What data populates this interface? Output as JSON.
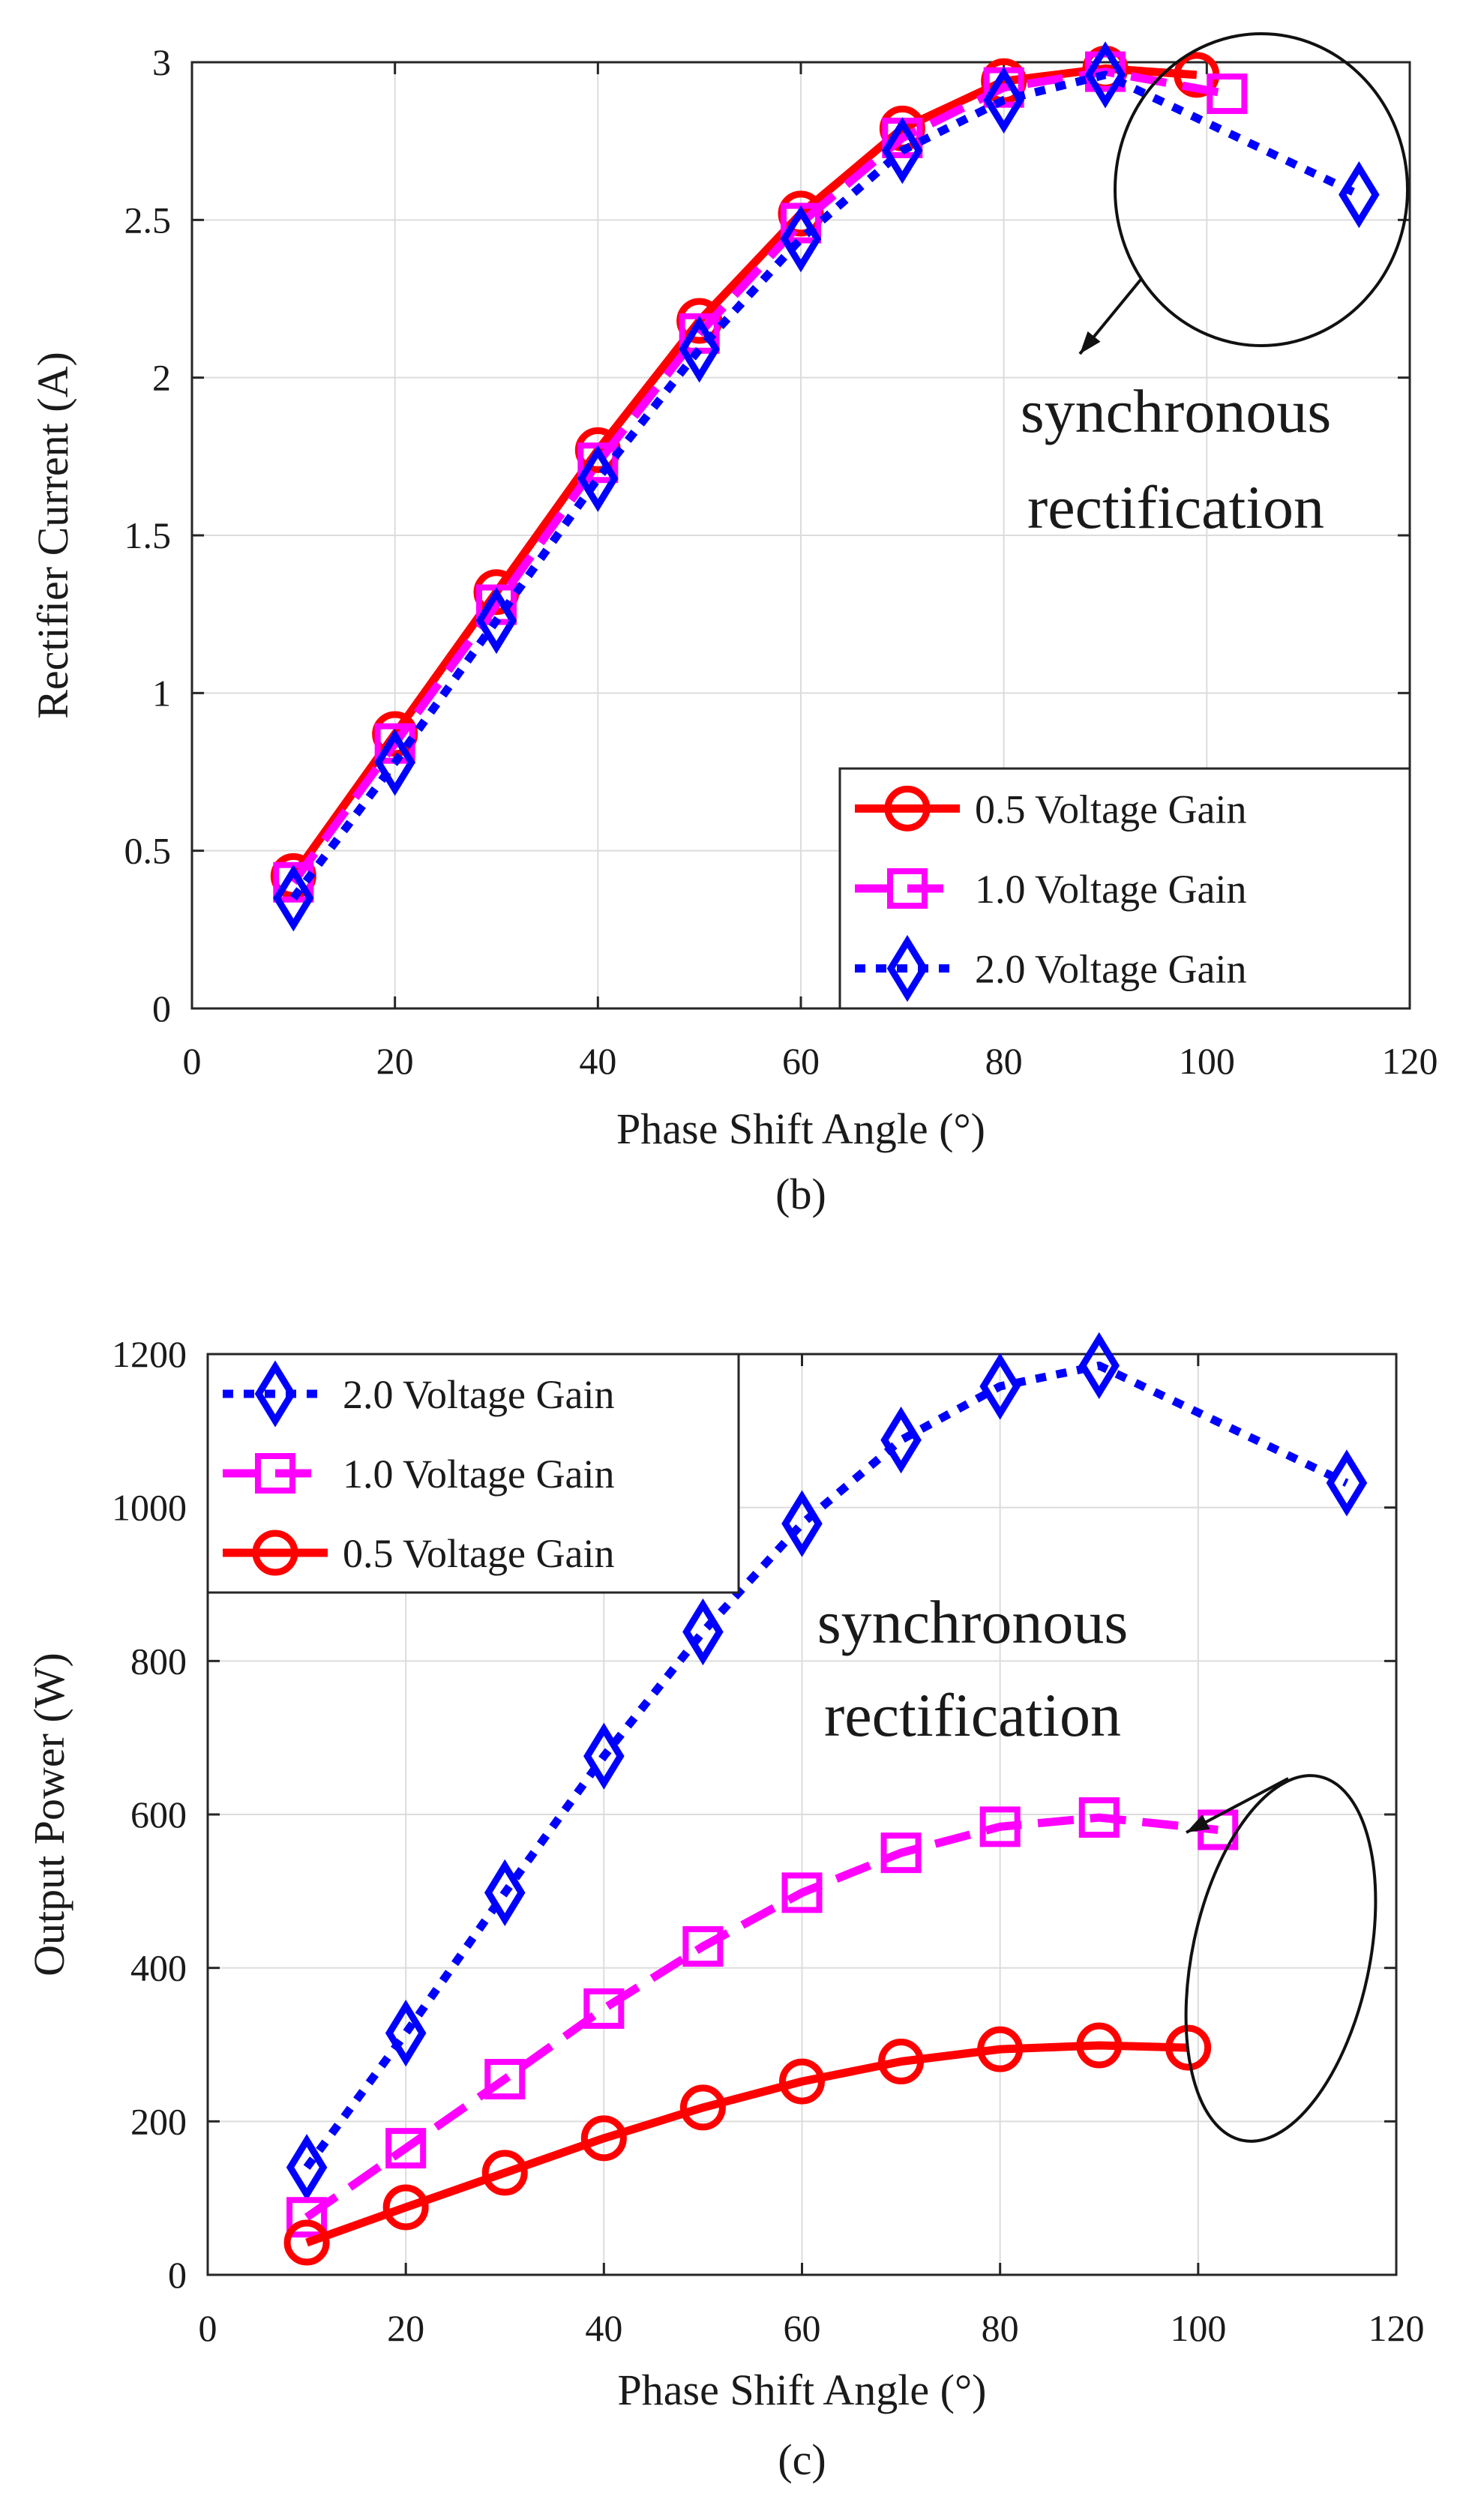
{
  "chart_data": [
    {
      "type": "line",
      "caption": "(b)",
      "xlabel": "Phase Shift Angle (°)",
      "ylabel": "Rectifier Current (A)",
      "xlim": [
        0,
        120
      ],
      "ylim": [
        0,
        3
      ],
      "xticks": [
        0,
        20,
        40,
        60,
        80,
        100,
        120
      ],
      "yticks": [
        0,
        0.5,
        1,
        1.5,
        2,
        2.5,
        3
      ],
      "ytick_labels": [
        "0",
        "0.5",
        "1",
        "1.5",
        "2",
        "2.5",
        "3"
      ],
      "grid": true,
      "legend_position": "bottom-right",
      "series": [
        {
          "name": "0.5 Voltage Gain",
          "color": "#ff0000",
          "marker": "circle",
          "line": "solid",
          "x": [
            10,
            20,
            30,
            40,
            50,
            60,
            70,
            80,
            90,
            99
          ],
          "y": [
            0.42,
            0.87,
            1.32,
            1.77,
            2.18,
            2.52,
            2.79,
            2.94,
            2.98,
            2.96
          ]
        },
        {
          "name": "1.0 Voltage Gain",
          "color": "#ff00ff",
          "marker": "square",
          "line": "dashed",
          "x": [
            10,
            20,
            30,
            40,
            50,
            60,
            70,
            80,
            90,
            102
          ],
          "y": [
            0.4,
            0.84,
            1.28,
            1.73,
            2.14,
            2.49,
            2.76,
            2.92,
            2.97,
            2.9
          ]
        },
        {
          "name": "2.0 Voltage Gain",
          "color": "#0000ff",
          "marker": "diamond",
          "line": "dotted",
          "x": [
            10,
            20,
            30,
            40,
            50,
            60,
            70,
            80,
            90,
            115
          ],
          "y": [
            0.35,
            0.78,
            1.23,
            1.68,
            2.09,
            2.44,
            2.72,
            2.88,
            2.96,
            2.58
          ]
        }
      ],
      "annotation": {
        "line1": "synchronous",
        "line2": "rectification"
      }
    },
    {
      "type": "line",
      "caption": "(c)",
      "xlabel": "Phase Shift Angle (°)",
      "ylabel": "Output Power (W)",
      "xlim": [
        0,
        120
      ],
      "ylim": [
        0,
        1200
      ],
      "xticks": [
        0,
        20,
        40,
        60,
        80,
        100,
        120
      ],
      "yticks": [
        0,
        200,
        400,
        600,
        800,
        1000,
        1200
      ],
      "ytick_labels": [
        "0",
        "200",
        "400",
        "600",
        "800",
        "1000",
        "1200"
      ],
      "grid": true,
      "legend_position": "top-left",
      "series": [
        {
          "name": "2.0 Voltage Gain",
          "color": "#0000ff",
          "marker": "diamond",
          "line": "dotted",
          "x": [
            10,
            20,
            30,
            40,
            50,
            60,
            70,
            80,
            90,
            115
          ],
          "y": [
            140,
            315,
            498,
            676,
            838,
            979,
            1088,
            1158,
            1185,
            1032
          ]
        },
        {
          "name": "1.0 Voltage Gain",
          "color": "#ff00ff",
          "marker": "square",
          "line": "dashed",
          "x": [
            10,
            20,
            30,
            40,
            50,
            60,
            70,
            80,
            90,
            102
          ],
          "y": [
            75,
            165,
            255,
            347,
            428,
            498,
            550,
            584,
            596,
            580
          ]
        },
        {
          "name": "0.5 Voltage Gain",
          "color": "#ff0000",
          "marker": "circle",
          "line": "solid",
          "x": [
            10,
            20,
            30,
            40,
            50,
            60,
            70,
            80,
            90,
            99
          ],
          "y": [
            42,
            88,
            133,
            178,
            218,
            252,
            278,
            294,
            299,
            296
          ]
        }
      ],
      "annotation": {
        "line1": "synchronous",
        "line2": "rectification"
      }
    }
  ]
}
